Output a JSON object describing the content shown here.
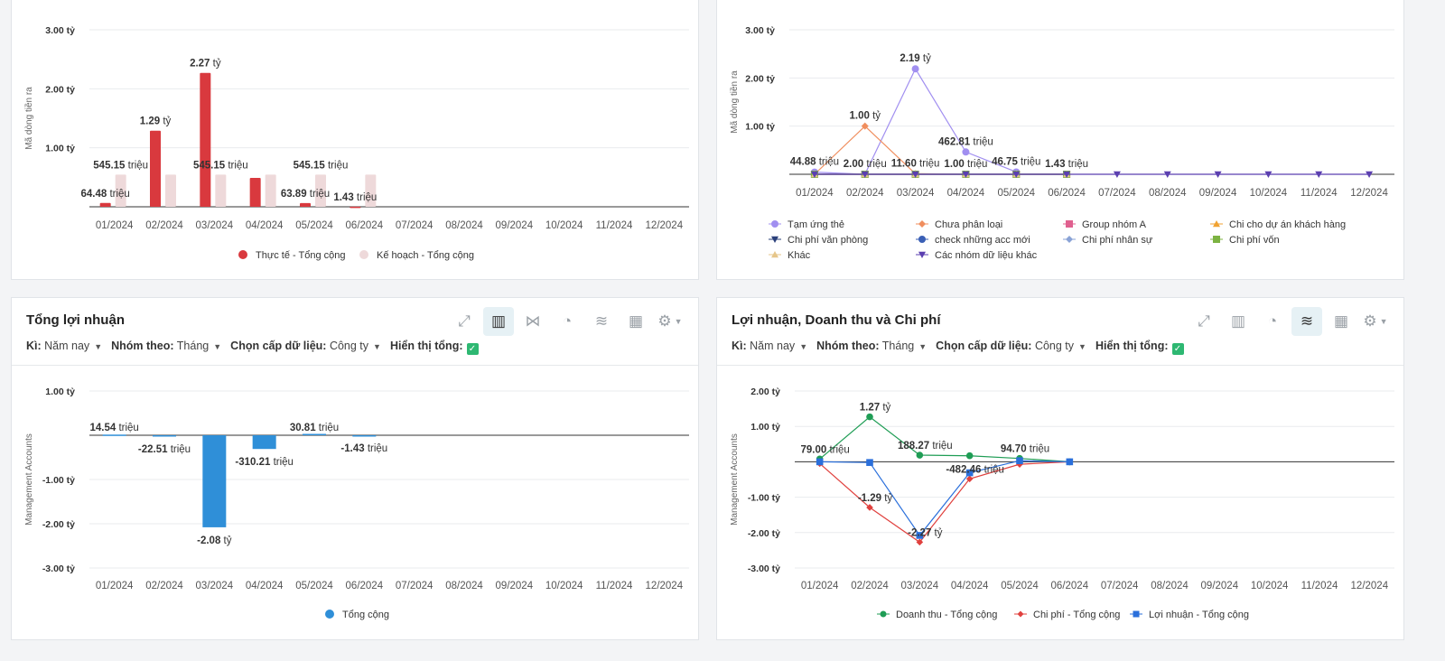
{
  "chart_data": [
    {
      "type": "bar",
      "ylabel": "Mã dòng tiền ra",
      "ylim": [
        0,
        3
      ],
      "yticks": [
        "1.00 tỷ",
        "2.00 tỷ",
        "3.00 tỷ"
      ],
      "categories": [
        "01/2024",
        "02/2024",
        "03/2024",
        "04/2024",
        "05/2024",
        "06/2024",
        "07/2024",
        "08/2024",
        "09/2024",
        "10/2024",
        "11/2024",
        "12/2024"
      ],
      "series": [
        {
          "name": "Thực tế - Tổng cộng",
          "color": "#d9393e",
          "values": [
            0.0645,
            1.29,
            2.27,
            0.49,
            0.0639,
            0.00143,
            0,
            0,
            0,
            0,
            0,
            0
          ]
        },
        {
          "name": "Kế hoạch - Tổng cộng",
          "color": "#eed9da",
          "values": [
            0.545,
            0.545,
            0.545,
            0.545,
            0.545,
            0.545,
            0,
            0,
            0,
            0,
            0,
            0
          ]
        }
      ],
      "labels": [
        {
          "i": 0,
          "s": 0,
          "v": "64.48",
          "u": "triệu"
        },
        {
          "i": 0,
          "s": 1,
          "v": "545.15",
          "u": "triệu"
        },
        {
          "i": 1,
          "s": 0,
          "v": "1.29",
          "u": "tỷ"
        },
        {
          "i": 2,
          "s": 0,
          "v": "2.27",
          "u": "tỷ"
        },
        {
          "i": 2,
          "s": 1,
          "v": "545.15",
          "u": "triệu"
        },
        {
          "i": 4,
          "s": 0,
          "v": "63.89",
          "u": "triệu"
        },
        {
          "i": 4,
          "s": 1,
          "v": "545.15",
          "u": "triệu"
        },
        {
          "i": 5,
          "s": 0,
          "v": "1.43",
          "u": "triệu"
        }
      ]
    },
    {
      "type": "line",
      "ylabel": "Mã dòng tiền ra",
      "ylim": [
        0,
        3
      ],
      "yticks": [
        "1.00 tỷ",
        "2.00 tỷ",
        "3.00 tỷ"
      ],
      "categories": [
        "01/2024",
        "02/2024",
        "03/2024",
        "04/2024",
        "05/2024",
        "06/2024",
        "07/2024",
        "08/2024",
        "09/2024",
        "10/2024",
        "11/2024",
        "12/2024"
      ],
      "series": [
        {
          "name": "Tạm ứng thẻ",
          "color": "#a18ff0",
          "marker": "circle",
          "values": [
            0.045,
            0.0,
            2.19,
            0.463,
            0.047,
            null,
            null,
            null,
            null,
            null,
            null,
            null
          ]
        },
        {
          "name": "Chưa phân loại",
          "color": "#f08e5e",
          "marker": "diamond",
          "values": [
            0.0,
            1.0,
            0.0116,
            0.0,
            null,
            null,
            null,
            null,
            null,
            null,
            null,
            null
          ]
        },
        {
          "name": "Group nhóm A",
          "color": "#e0608f",
          "marker": "square",
          "values": [
            0,
            0,
            0,
            0,
            0,
            0,
            null,
            null,
            null,
            null,
            null,
            null
          ]
        },
        {
          "name": "Chi cho dự án khách hàng",
          "color": "#f1a230",
          "marker": "triangle",
          "values": [
            0,
            0,
            0,
            0,
            0,
            0,
            null,
            null,
            null,
            null,
            null,
            null
          ]
        },
        {
          "name": "Chi phí văn phòng",
          "color": "#2a3f7a",
          "marker": "triangle-down",
          "values": [
            0,
            0,
            0,
            0,
            0,
            0,
            null,
            null,
            null,
            null,
            null,
            null
          ]
        },
        {
          "name": "check những acc mới",
          "color": "#3a5fb5",
          "marker": "circle",
          "values": [
            0,
            0,
            0,
            0,
            0,
            0,
            null,
            null,
            null,
            null,
            null,
            null
          ]
        },
        {
          "name": "Chi phí nhân sự",
          "color": "#8aa3d6",
          "marker": "diamond",
          "values": [
            0,
            0,
            0,
            0,
            0,
            0,
            null,
            null,
            null,
            null,
            null,
            null
          ]
        },
        {
          "name": "Chi phí vốn",
          "color": "#7cb342",
          "marker": "square",
          "values": [
            0,
            0,
            0,
            0,
            0,
            0,
            null,
            null,
            null,
            null,
            null,
            null
          ]
        },
        {
          "name": "Khác",
          "color": "#e6c68a",
          "marker": "triangle",
          "values": [
            0,
            0,
            0,
            0,
            0,
            0,
            null,
            null,
            null,
            null,
            null,
            null
          ]
        },
        {
          "name": "Các nhóm dữ liệu khác",
          "color": "#5b3fb0",
          "marker": "triangle-down",
          "values": [
            0,
            0,
            0,
            0,
            0,
            0,
            0,
            0,
            0,
            0,
            0,
            0
          ]
        }
      ],
      "labels": [
        {
          "i": 0,
          "val": 0.045,
          "v": "44.88",
          "u": "triệu"
        },
        {
          "i": 1,
          "val": 1.0,
          "v": "1.00",
          "u": "tỷ"
        },
        {
          "i": 1,
          "val": 0.0,
          "v": "2.00",
          "u": "triệu"
        },
        {
          "i": 2,
          "val": 2.19,
          "v": "2.19",
          "u": "tỷ"
        },
        {
          "i": 2,
          "val": 0.0116,
          "v": "11.60",
          "u": "triệu"
        },
        {
          "i": 3,
          "val": 0.463,
          "v": "462.81",
          "u": "triệu"
        },
        {
          "i": 3,
          "val": 0.0,
          "v": "1.00",
          "u": "triệu"
        },
        {
          "i": 4,
          "val": 0.047,
          "v": "46.75",
          "u": "triệu"
        },
        {
          "i": 5,
          "val": 0.0,
          "v": "1.43",
          "u": "triệu"
        }
      ]
    },
    {
      "type": "bar",
      "title": "Tổng lợi nhuận",
      "ylabel": "Management Accounts",
      "ylim": [
        -3,
        1
      ],
      "yticks": [
        "1.00 tỷ",
        "-1.00 tỷ",
        "-2.00 tỷ",
        "-3.00 tỷ"
      ],
      "categories": [
        "01/2024",
        "02/2024",
        "03/2024",
        "04/2024",
        "05/2024",
        "06/2024",
        "07/2024",
        "08/2024",
        "09/2024",
        "10/2024",
        "11/2024",
        "12/2024"
      ],
      "series": [
        {
          "name": "Tổng cộng",
          "color": "#2f8fd8",
          "values": [
            0.0145,
            -0.0225,
            -2.08,
            -0.31,
            0.0308,
            -0.00143,
            0,
            0,
            0,
            0,
            0,
            0
          ]
        }
      ],
      "labels": [
        {
          "i": 0,
          "v": "14.54",
          "u": "triệu"
        },
        {
          "i": 1,
          "v": "-22.51",
          "u": "triệu"
        },
        {
          "i": 2,
          "v": "-2.08",
          "u": "tỷ"
        },
        {
          "i": 3,
          "v": "-310.21",
          "u": "triệu"
        },
        {
          "i": 4,
          "v": "30.81",
          "u": "triệu"
        },
        {
          "i": 5,
          "v": "-1.43",
          "u": "triệu"
        }
      ]
    },
    {
      "type": "line",
      "title": "Lợi nhuận, Doanh thu và Chi phí",
      "ylabel": "Management Accounts",
      "ylim": [
        -3,
        2
      ],
      "yticks": [
        "2.00 tỷ",
        "1.00 tỷ",
        "-1.00 tỷ",
        "-2.00 tỷ",
        "-3.00 tỷ"
      ],
      "categories": [
        "01/2024",
        "02/2024",
        "03/2024",
        "04/2024",
        "05/2024",
        "06/2024",
        "07/2024",
        "08/2024",
        "09/2024",
        "10/2024",
        "11/2024",
        "12/2024"
      ],
      "series": [
        {
          "name": "Doanh thu - Tổng cộng",
          "color": "#1f9d55",
          "marker": "circle",
          "values": [
            0.079,
            1.27,
            0.188,
            0.17,
            0.095,
            0,
            null,
            null,
            null,
            null,
            null,
            null
          ]
        },
        {
          "name": "Chi phí - Tổng cộng",
          "color": "#e0413e",
          "marker": "diamond",
          "values": [
            -0.05,
            -1.29,
            -2.27,
            -0.482,
            -0.07,
            0,
            null,
            null,
            null,
            null,
            null,
            null
          ]
        },
        {
          "name": "Lợi nhuận - Tổng cộng",
          "color": "#2a6fdb",
          "marker": "square",
          "values": [
            0.0,
            -0.02,
            -2.08,
            -0.31,
            0.03,
            0,
            null,
            null,
            null,
            null,
            null,
            null
          ]
        }
      ],
      "labels": [
        {
          "i": 0,
          "val": 0.079,
          "v": "79.00",
          "u": "triệu"
        },
        {
          "i": 1,
          "val": 1.27,
          "v": "1.27",
          "u": "tỷ"
        },
        {
          "i": 1,
          "val": -1.29,
          "v": "-1.29",
          "u": "tỷ"
        },
        {
          "i": 2,
          "val": 0.188,
          "v": "188.27",
          "u": "triệu"
        },
        {
          "i": 2,
          "val": -2.27,
          "v": "-2.27",
          "u": "tỷ"
        },
        {
          "i": 3,
          "val": -0.482,
          "v": "-482.46",
          "u": "triệu"
        },
        {
          "i": 4,
          "val": 0.095,
          "v": "94.70",
          "u": "triệu"
        }
      ]
    }
  ],
  "filters": {
    "period_label": "Kì:",
    "period_value": "Năm nay",
    "group_label": "Nhóm theo:",
    "group_value": "Tháng",
    "level_label": "Chọn cấp dữ liệu:",
    "level_value": "Công ty",
    "total_label": "Hiển thị tổng:"
  },
  "colors": {
    "accent": "#2eb872"
  }
}
